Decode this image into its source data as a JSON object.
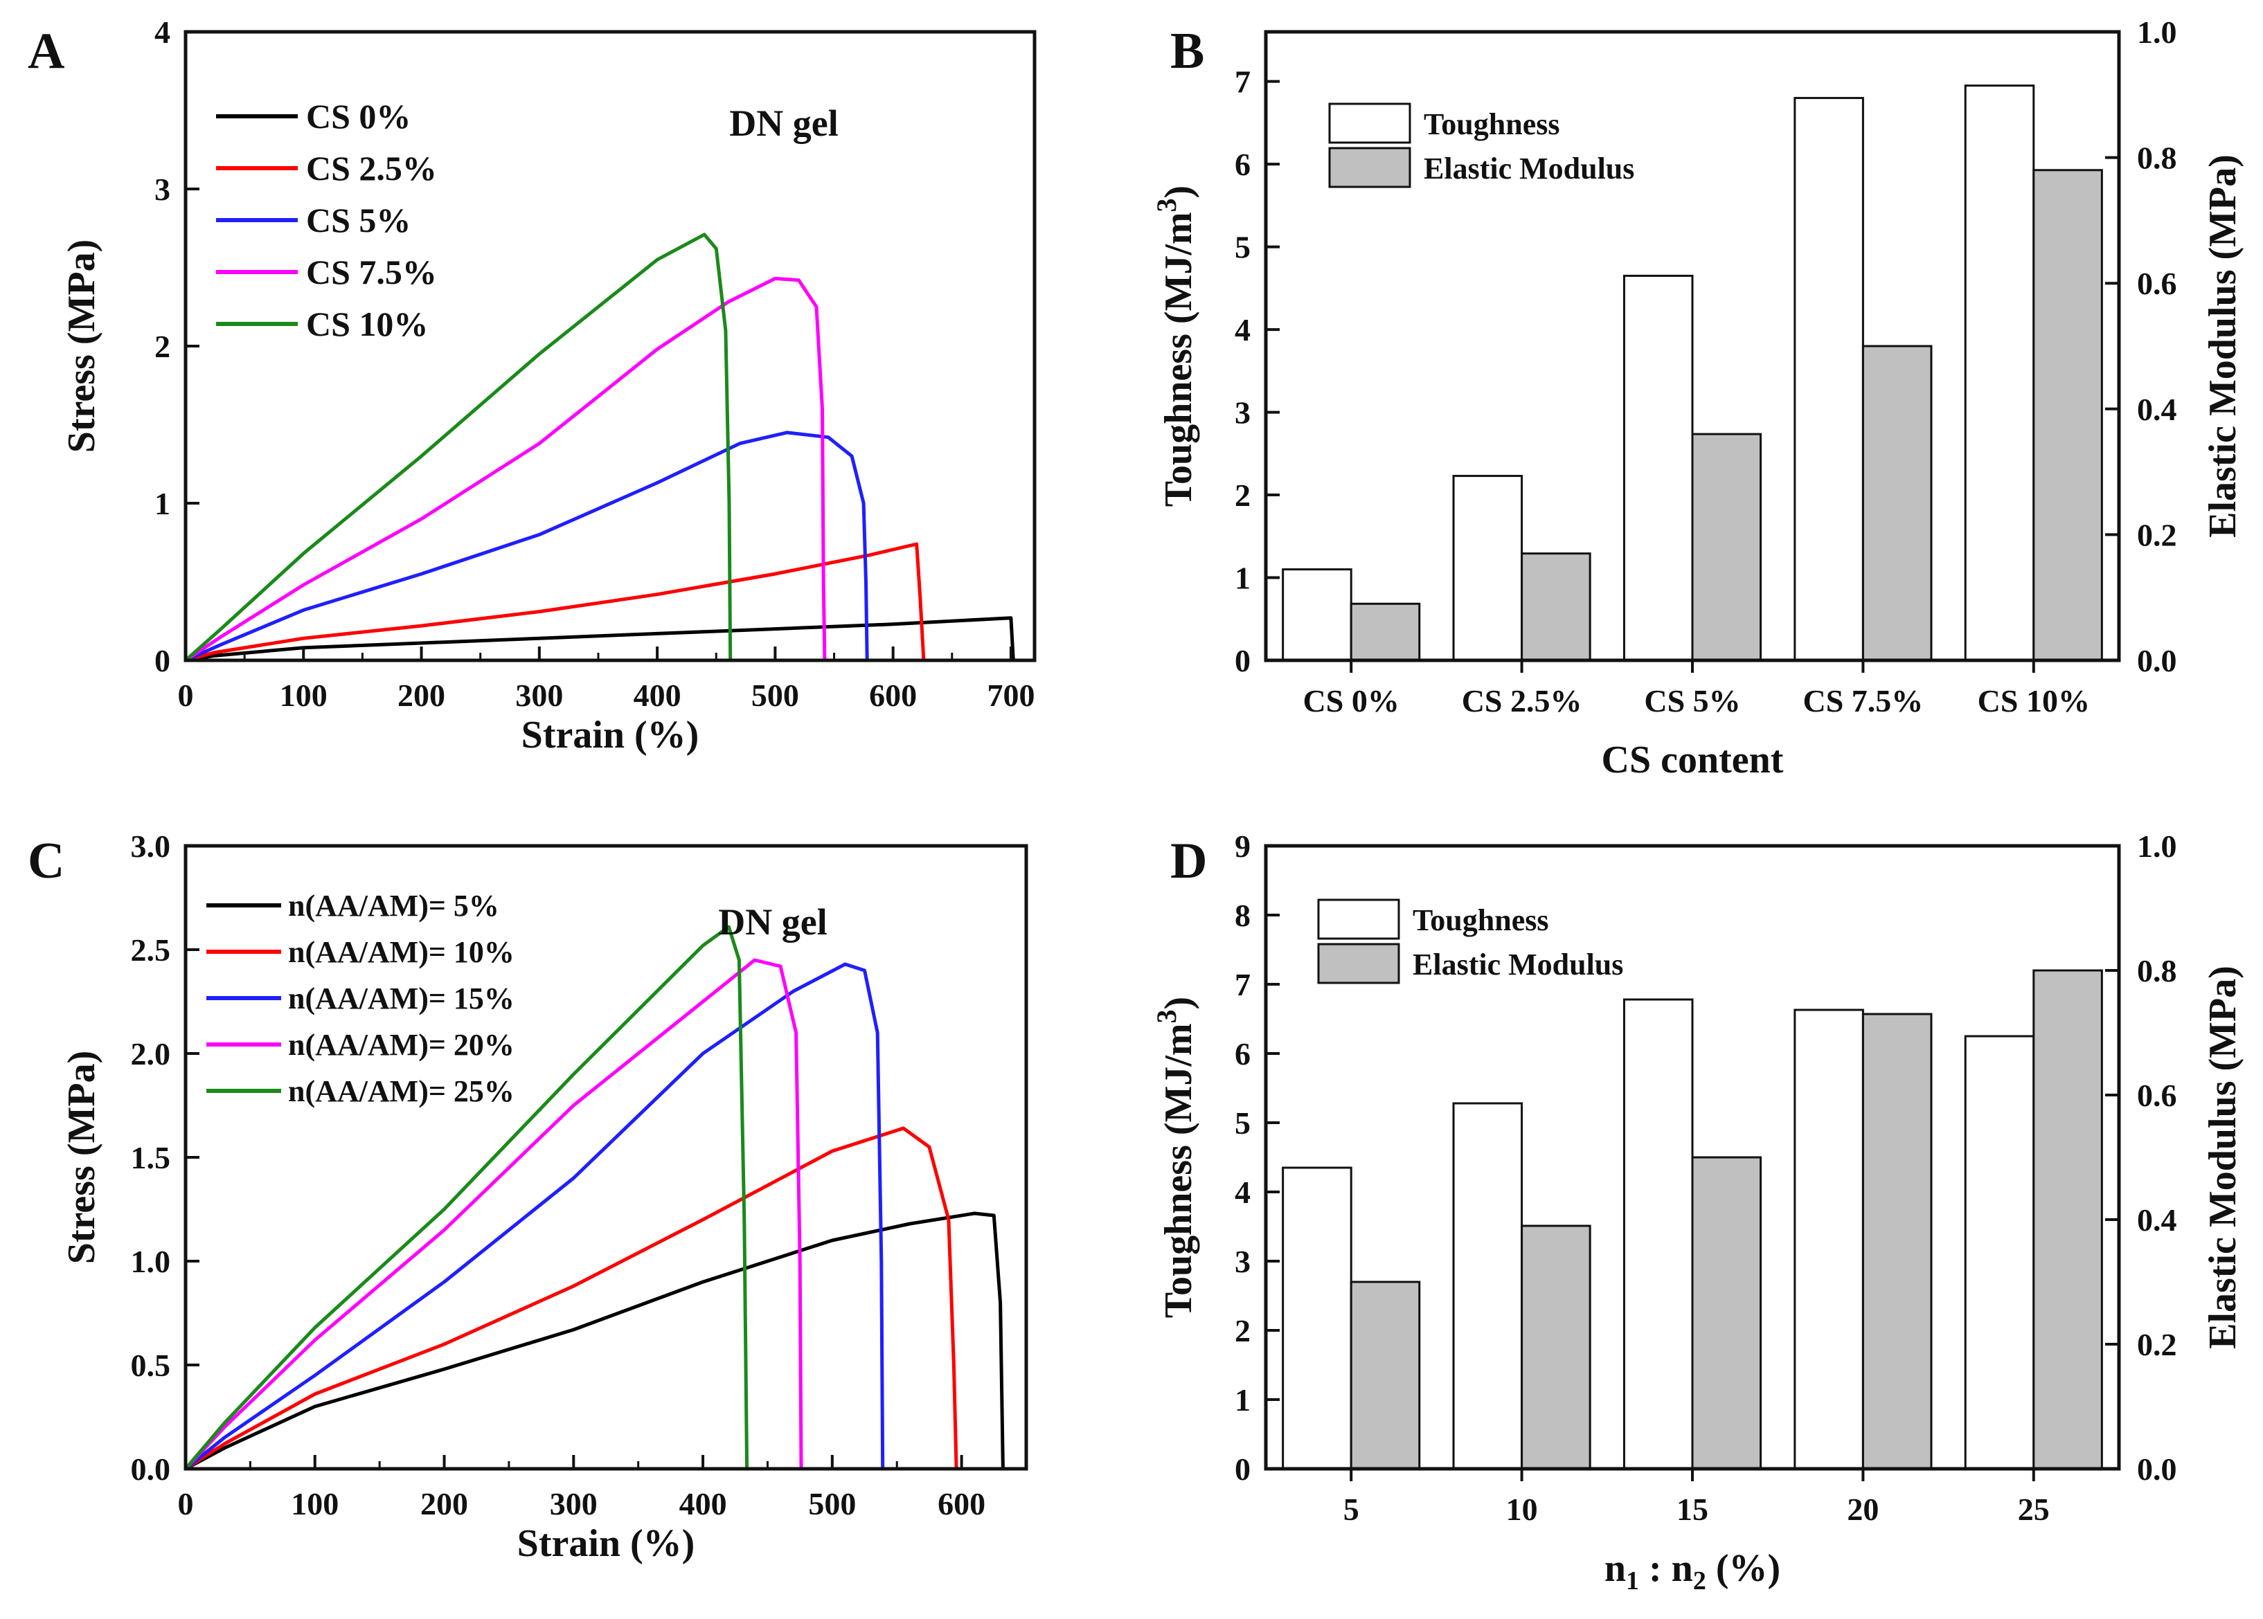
{
  "chart_data": [
    {
      "panel": "A",
      "type": "line",
      "xlabel": "Strain (%)",
      "ylabel": "Stress (MPa)",
      "xlim": [
        0,
        720
      ],
      "ylim": [
        0,
        4
      ],
      "xticks": [
        0,
        100,
        200,
        300,
        400,
        500,
        600,
        700
      ],
      "yticks": [
        0,
        1,
        2,
        3,
        4
      ],
      "annotation": "DN gel",
      "legend_position": "top-left",
      "series": [
        {
          "name": "CS 0%",
          "color": "#000000",
          "points": [
            [
              0,
              0
            ],
            [
              25,
              0.03
            ],
            [
              100,
              0.08
            ],
            [
              200,
              0.11
            ],
            [
              300,
              0.14
            ],
            [
              400,
              0.17
            ],
            [
              500,
              0.2
            ],
            [
              600,
              0.23
            ],
            [
              700,
              0.27
            ],
            [
              702,
              0.0
            ]
          ]
        },
        {
          "name": "CS 2.5%",
          "color": "#ff0000",
          "points": [
            [
              0,
              0
            ],
            [
              25,
              0.05
            ],
            [
              100,
              0.14
            ],
            [
              200,
              0.22
            ],
            [
              300,
              0.31
            ],
            [
              400,
              0.42
            ],
            [
              500,
              0.55
            ],
            [
              580,
              0.67
            ],
            [
              620,
              0.74
            ],
            [
              623,
              0.4
            ],
            [
              626,
              0.0
            ]
          ]
        },
        {
          "name": "CS 5%",
          "color": "#1f1fff",
          "points": [
            [
              0,
              0
            ],
            [
              30,
              0.1
            ],
            [
              100,
              0.32
            ],
            [
              200,
              0.55
            ],
            [
              300,
              0.8
            ],
            [
              400,
              1.13
            ],
            [
              470,
              1.38
            ],
            [
              510,
              1.45
            ],
            [
              545,
              1.42
            ],
            [
              565,
              1.3
            ],
            [
              575,
              1.0
            ],
            [
              577,
              0.5
            ],
            [
              578,
              0.0
            ]
          ]
        },
        {
          "name": "CS 7.5%",
          "color": "#ff00ff",
          "points": [
            [
              0,
              0
            ],
            [
              30,
              0.15
            ],
            [
              100,
              0.48
            ],
            [
              200,
              0.9
            ],
            [
              300,
              1.38
            ],
            [
              400,
              1.98
            ],
            [
              460,
              2.28
            ],
            [
              500,
              2.43
            ],
            [
              520,
              2.42
            ],
            [
              535,
              2.25
            ],
            [
              540,
              1.6
            ],
            [
              541,
              0.5
            ],
            [
              542,
              0.0
            ]
          ]
        },
        {
          "name": "CS 10%",
          "color": "#1a8a1a",
          "points": [
            [
              0,
              0
            ],
            [
              30,
              0.2
            ],
            [
              100,
              0.68
            ],
            [
              200,
              1.3
            ],
            [
              300,
              1.95
            ],
            [
              400,
              2.55
            ],
            [
              440,
              2.71
            ],
            [
              450,
              2.62
            ],
            [
              458,
              2.1
            ],
            [
              461,
              1.0
            ],
            [
              462,
              0.0
            ]
          ]
        }
      ]
    },
    {
      "panel": "B",
      "type": "bar",
      "xlabel": "CS content",
      "ylabel": "Toughness (MJ/m3)",
      "ylabel_base": "Toughness (MJ/m",
      "ylabel_sup": "3",
      "ylabel_end": ")",
      "y2label": "Elastic Modulus (MPa)",
      "categories": [
        "CS 0%",
        "CS 2.5%",
        "CS 5%",
        "CS 7.5%",
        "CS 10%"
      ],
      "ylim": [
        0,
        7.6
      ],
      "yticks": [
        0,
        1,
        2,
        3,
        4,
        5,
        6,
        7
      ],
      "y2lim": [
        0,
        1.0
      ],
      "y2ticks": [
        "0.0",
        "0.2",
        "0.4",
        "0.6",
        "0.8",
        "1.0"
      ],
      "legend_position": "top-left",
      "series": [
        {
          "name": "Toughness",
          "axis": "left",
          "fill": "#ffffff",
          "values": [
            1.1,
            2.23,
            4.65,
            6.8,
            6.95
          ]
        },
        {
          "name": "Elastic Modulus",
          "axis": "right",
          "fill": "#c0c0c0",
          "values": [
            0.09,
            0.17,
            0.36,
            0.5,
            0.78
          ]
        }
      ]
    },
    {
      "panel": "C",
      "type": "line",
      "xlabel": "Strain (%)",
      "ylabel": "Stress (MPa)",
      "xlim": [
        0,
        650
      ],
      "ylim": [
        0,
        3.0
      ],
      "xticks": [
        0,
        100,
        200,
        300,
        400,
        500,
        600
      ],
      "yticks": [
        "0.0",
        "0.5",
        "1.0",
        "1.5",
        "2.0",
        "2.5",
        "3.0"
      ],
      "annotation": "DN gel",
      "legend_position": "top-left",
      "series": [
        {
          "name": "n(AA/AM)= 5%",
          "color": "#000000",
          "points": [
            [
              0,
              0
            ],
            [
              30,
              0.1
            ],
            [
              100,
              0.3
            ],
            [
              200,
              0.48
            ],
            [
              300,
              0.67
            ],
            [
              400,
              0.9
            ],
            [
              500,
              1.1
            ],
            [
              560,
              1.18
            ],
            [
              610,
              1.23
            ],
            [
              625,
              1.22
            ],
            [
              630,
              0.8
            ],
            [
              632,
              0.0
            ]
          ]
        },
        {
          "name": "n(AA/AM)= 10%",
          "color": "#ff0000",
          "points": [
            [
              0,
              0
            ],
            [
              30,
              0.12
            ],
            [
              100,
              0.36
            ],
            [
              200,
              0.6
            ],
            [
              300,
              0.88
            ],
            [
              400,
              1.2
            ],
            [
              500,
              1.53
            ],
            [
              555,
              1.64
            ],
            [
              575,
              1.55
            ],
            [
              590,
              1.2
            ],
            [
              594,
              0.5
            ],
            [
              596,
              0.0
            ]
          ]
        },
        {
          "name": "n(AA/AM)= 15%",
          "color": "#1f1fff",
          "points": [
            [
              0,
              0
            ],
            [
              30,
              0.15
            ],
            [
              100,
              0.45
            ],
            [
              200,
              0.9
            ],
            [
              300,
              1.4
            ],
            [
              400,
              2.0
            ],
            [
              470,
              2.3
            ],
            [
              510,
              2.43
            ],
            [
              525,
              2.4
            ],
            [
              535,
              2.1
            ],
            [
              538,
              1.0
            ],
            [
              539,
              0.0
            ]
          ]
        },
        {
          "name": "n(AA/AM)= 20%",
          "color": "#ff00ff",
          "points": [
            [
              0,
              0
            ],
            [
              30,
              0.2
            ],
            [
              100,
              0.62
            ],
            [
              200,
              1.15
            ],
            [
              300,
              1.75
            ],
            [
              400,
              2.25
            ],
            [
              440,
              2.45
            ],
            [
              460,
              2.42
            ],
            [
              472,
              2.1
            ],
            [
              475,
              1.0
            ],
            [
              476,
              0.0
            ]
          ]
        },
        {
          "name": "n(AA/AM)= 25%",
          "color": "#1a8a1a",
          "points": [
            [
              0,
              0
            ],
            [
              30,
              0.22
            ],
            [
              100,
              0.68
            ],
            [
              200,
              1.25
            ],
            [
              300,
              1.9
            ],
            [
              400,
              2.52
            ],
            [
              420,
              2.61
            ],
            [
              428,
              2.45
            ],
            [
              432,
              1.2
            ],
            [
              434,
              0.0
            ]
          ]
        }
      ]
    },
    {
      "panel": "D",
      "type": "bar",
      "xlabel": "n1 : n2 (%)",
      "xlabel_parts": [
        "n",
        "1",
        " : n",
        "2",
        " (%)"
      ],
      "ylabel": "Toughness (MJ/m3)",
      "ylabel_base": "Toughness (MJ/m",
      "ylabel_sup": "3",
      "ylabel_end": ")",
      "y2label": "Elastic Modulus (MPa)",
      "categories": [
        "5",
        "10",
        "15",
        "20",
        "25"
      ],
      "ylim": [
        0,
        9
      ],
      "yticks": [
        0,
        1,
        2,
        3,
        4,
        5,
        6,
        7,
        8,
        9
      ],
      "y2lim": [
        0,
        1.0
      ],
      "y2ticks": [
        "0.0",
        "0.2",
        "0.4",
        "0.6",
        "0.8",
        "1.0"
      ],
      "legend_position": "top-left",
      "series": [
        {
          "name": "Toughness",
          "axis": "left",
          "fill": "#ffffff",
          "values": [
            4.35,
            5.28,
            6.78,
            6.63,
            6.25
          ]
        },
        {
          "name": "Elastic Modulus",
          "axis": "right",
          "fill": "#c0c0c0",
          "values": [
            0.3,
            0.39,
            0.5,
            0.73,
            0.8
          ]
        }
      ]
    }
  ]
}
